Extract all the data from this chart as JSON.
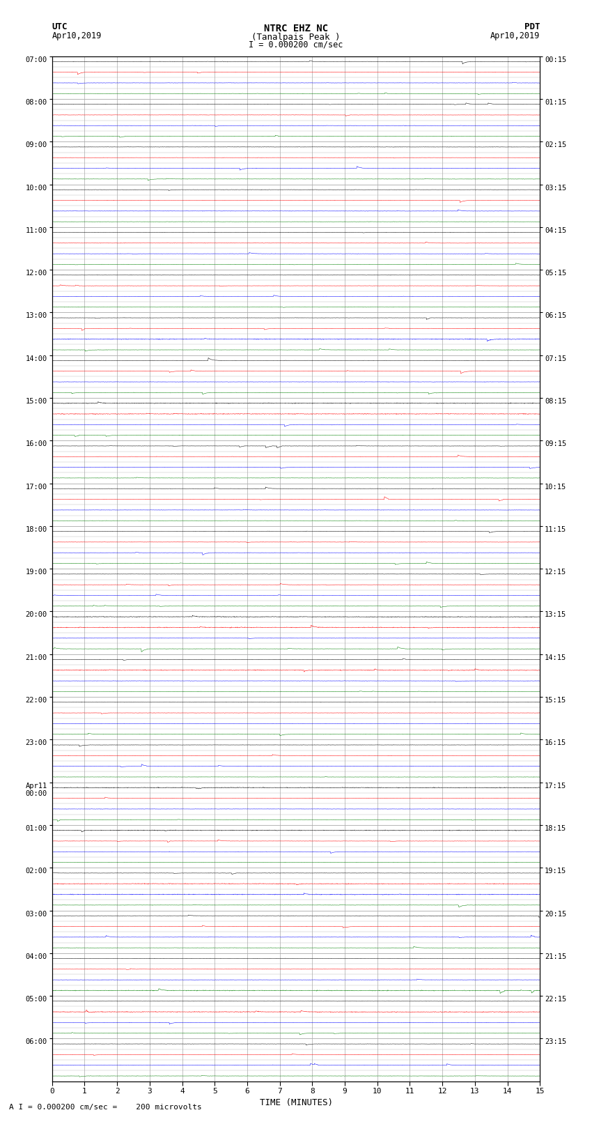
{
  "title_line1": "NTRC EHZ NC",
  "title_line2": "(Tanalpais Peak )",
  "title_line3": "I = 0.000200 cm/sec",
  "left_label_top": "UTC",
  "left_label_date": "Apr10,2019",
  "right_label_top": "PDT",
  "right_label_date": "Apr10,2019",
  "xlabel": "TIME (MINUTES)",
  "bottom_label": "A I = 0.000200 cm/sec =    200 microvolts",
  "utc_times": [
    "07:00",
    "08:00",
    "09:00",
    "10:00",
    "11:00",
    "12:00",
    "13:00",
    "14:00",
    "15:00",
    "16:00",
    "17:00",
    "18:00",
    "19:00",
    "20:00",
    "21:00",
    "22:00",
    "23:00",
    "Apr11\n00:00",
    "01:00",
    "02:00",
    "03:00",
    "04:00",
    "05:00",
    "06:00"
  ],
  "pdt_times": [
    "00:15",
    "01:15",
    "02:15",
    "03:15",
    "04:15",
    "05:15",
    "06:15",
    "07:15",
    "08:15",
    "09:15",
    "10:15",
    "11:15",
    "12:15",
    "13:15",
    "14:15",
    "15:15",
    "16:15",
    "17:15",
    "18:15",
    "19:15",
    "20:15",
    "21:15",
    "22:15",
    "23:15"
  ],
  "colors": [
    "black",
    "red",
    "blue",
    "green"
  ],
  "n_hours": 24,
  "traces_per_hour": 4,
  "n_minutes": 15,
  "background_color": "white",
  "grid_color": "#aaaaaa",
  "xmin": 0,
  "xmax": 15,
  "xticks": [
    0,
    1,
    2,
    3,
    4,
    5,
    6,
    7,
    8,
    9,
    10,
    11,
    12,
    13,
    14,
    15
  ]
}
